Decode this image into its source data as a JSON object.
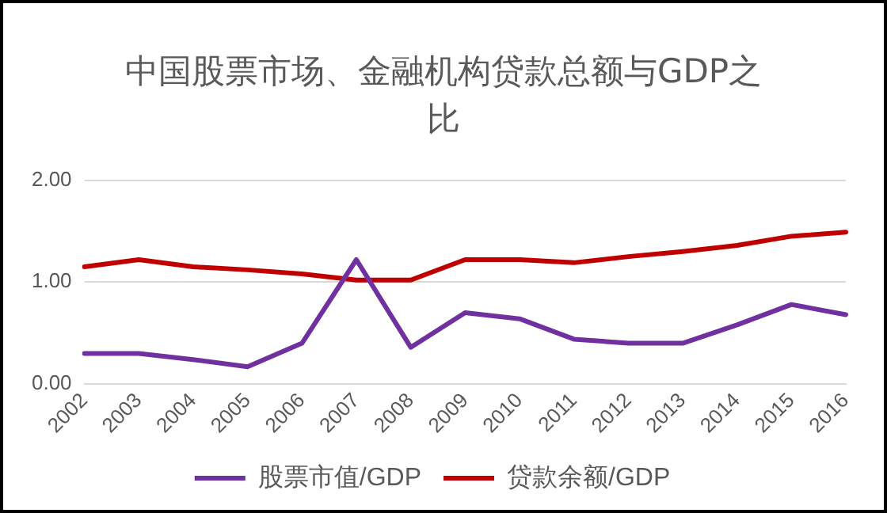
{
  "chart_data": {
    "type": "line",
    "title": "中国股票市场、金融机构贷款总额与GDP之比",
    "categories": [
      "2002",
      "2003",
      "2004",
      "2005",
      "2006",
      "2007",
      "2008",
      "2009",
      "2010",
      "2011",
      "2012",
      "2013",
      "2014",
      "2015",
      "2016"
    ],
    "series": [
      {
        "name": "股票市值/GDP",
        "color": "#7030a0",
        "values": [
          0.3,
          0.3,
          0.24,
          0.17,
          0.4,
          1.22,
          0.36,
          0.7,
          0.64,
          0.44,
          0.4,
          0.4,
          0.58,
          0.78,
          0.68
        ]
      },
      {
        "name": "贷款余额/GDP",
        "color": "#c00000",
        "values": [
          1.15,
          1.22,
          1.15,
          1.12,
          1.08,
          1.02,
          1.02,
          1.22,
          1.22,
          1.19,
          1.25,
          1.3,
          1.36,
          1.45,
          1.49
        ]
      }
    ],
    "ylim": [
      0,
      2
    ],
    "yticks": [
      {
        "value": 0,
        "label": "0.00"
      },
      {
        "value": 1,
        "label": "1.00"
      },
      {
        "value": 2,
        "label": "2.00"
      }
    ],
    "grid": "y",
    "legend": "bottom",
    "marker": "none",
    "line_style": "solid"
  }
}
